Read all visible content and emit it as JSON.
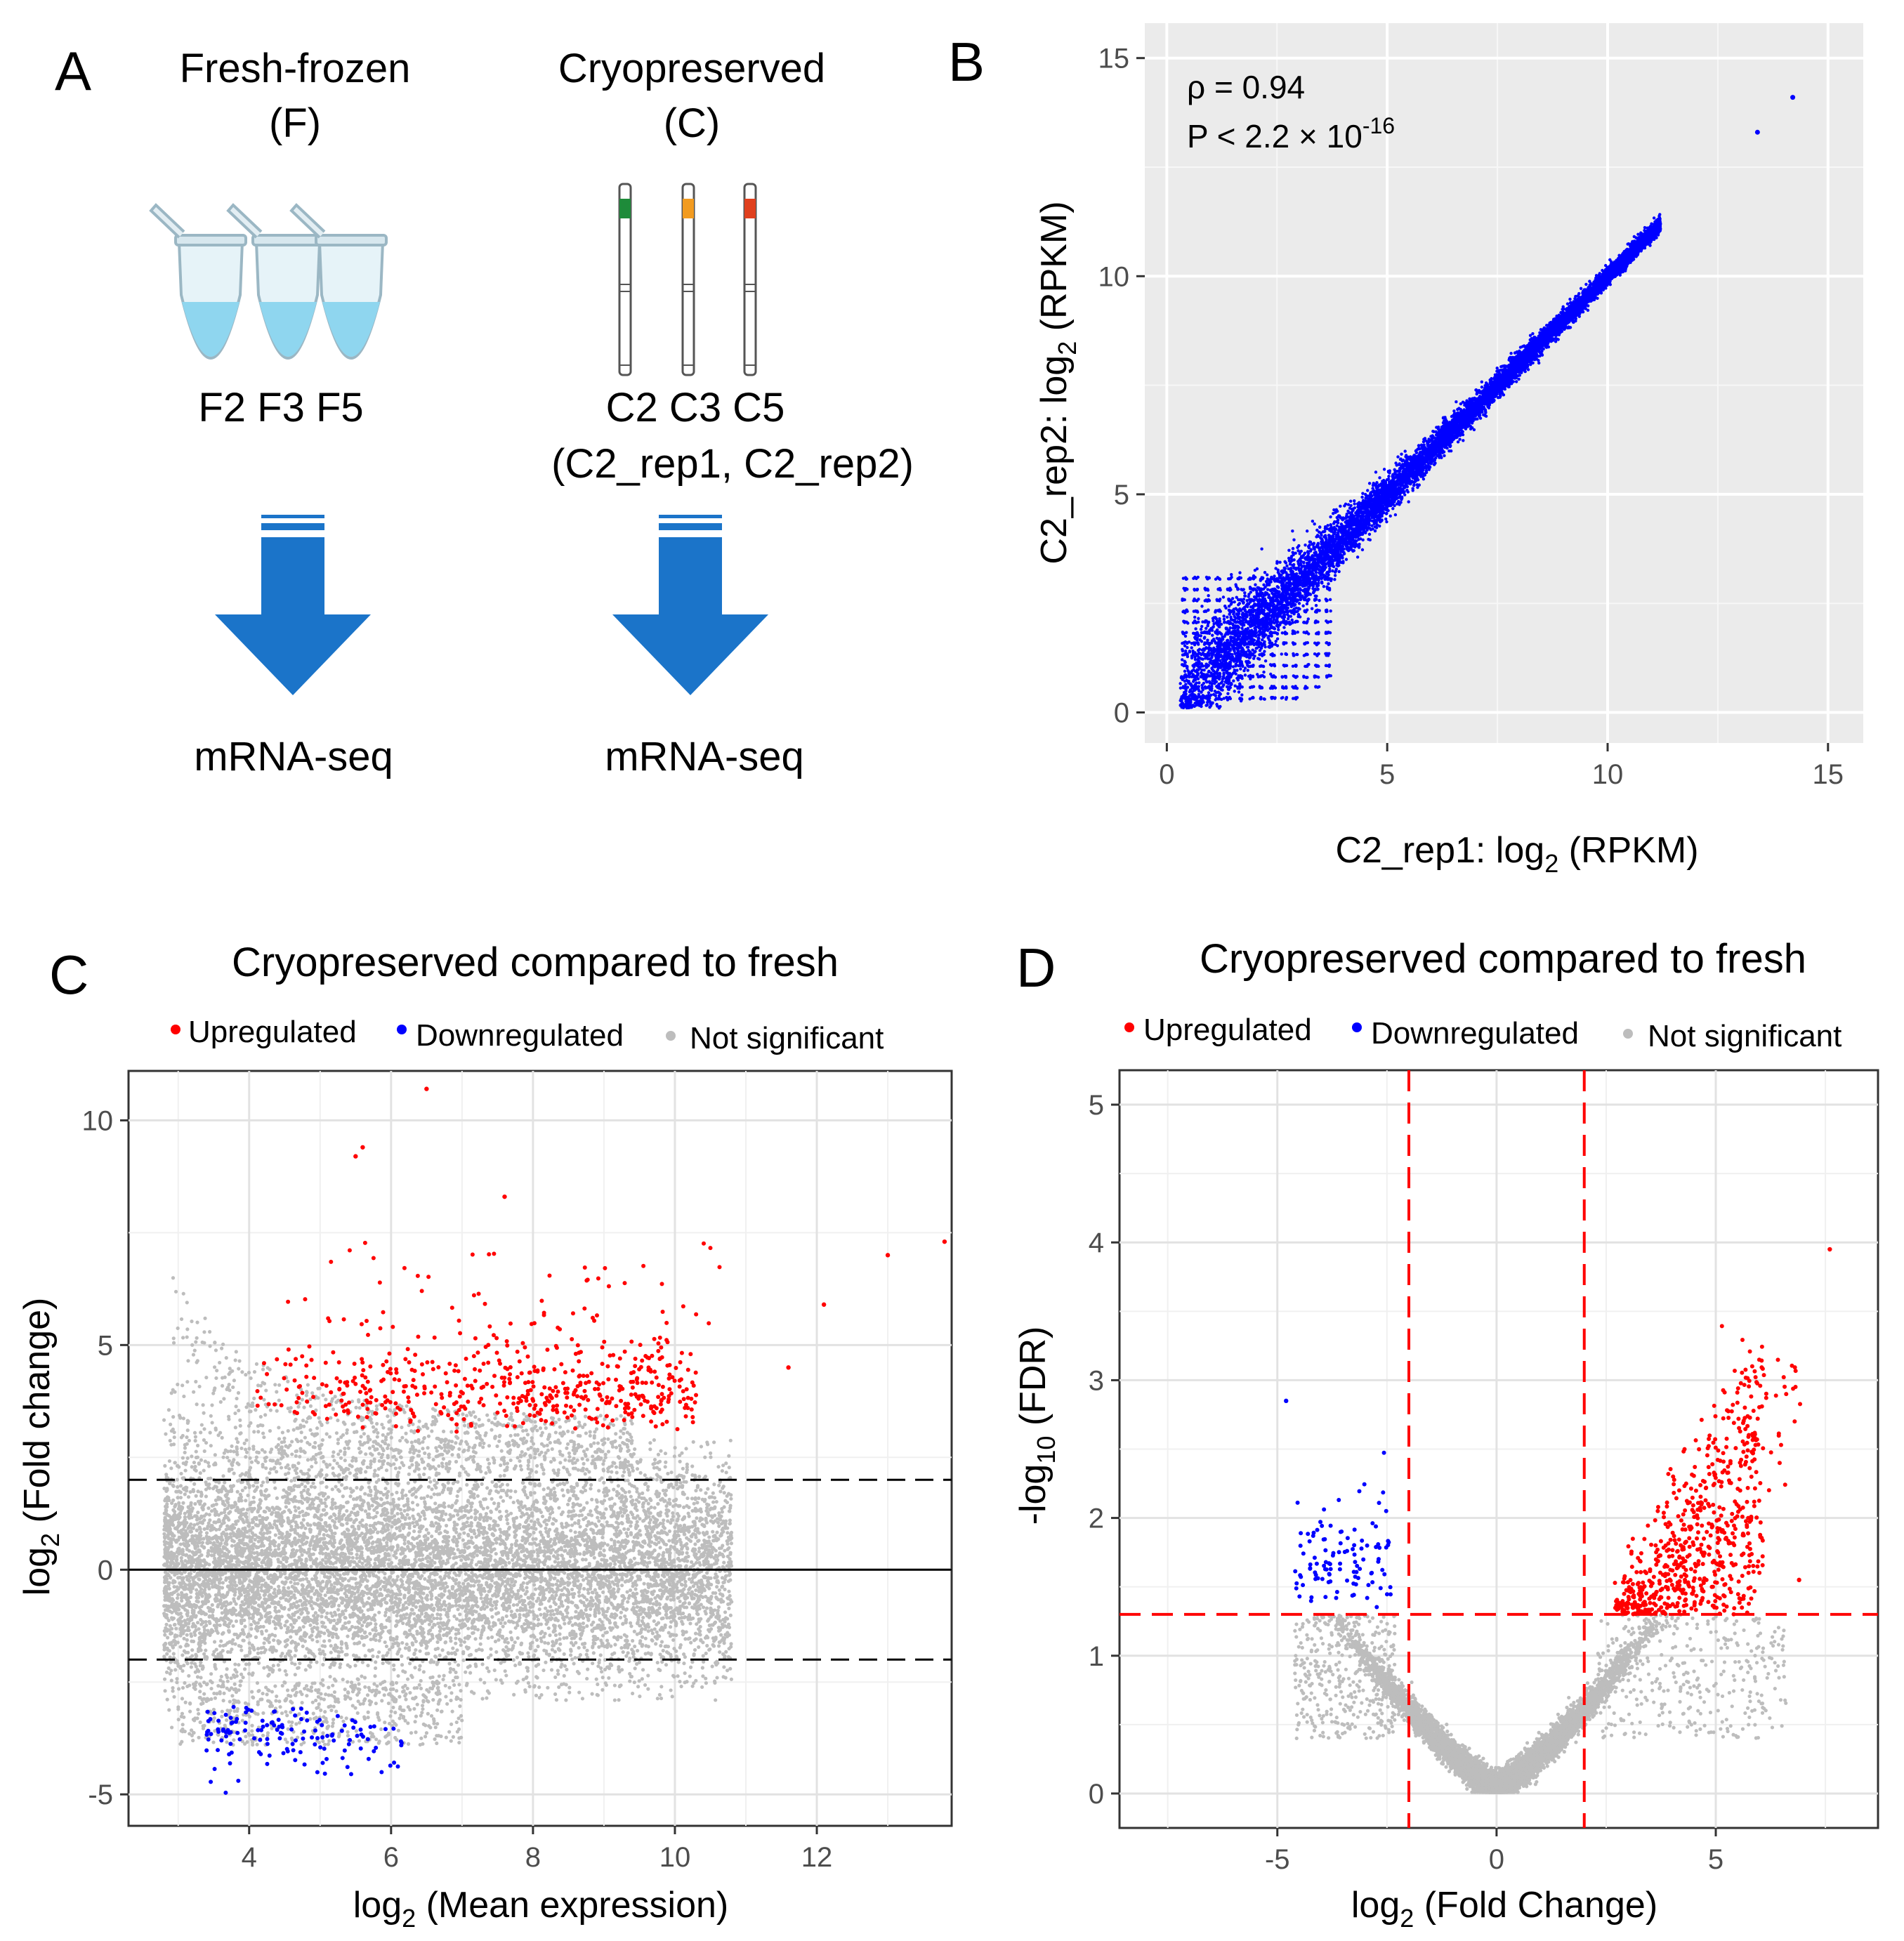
{
  "panel_a": {
    "label": "A",
    "fresh_title": "Fresh-frozen",
    "fresh_sub": "(F)",
    "fresh_samples": "F2 F3 F5",
    "cryo_title": "Cryopreserved",
    "cryo_sub": "(C)",
    "cryo_samples": "C2 C3 C5",
    "cryo_reps": "(C2_rep1, C2_rep2)",
    "assay_fresh": "mRNA-seq",
    "assay_cryo": "mRNA-seq",
    "tube_colors": [
      "#1e8b3a",
      "#f29b20",
      "#e0401e"
    ]
  },
  "colors": {
    "up": "#ff0000",
    "down": "#0000ff",
    "ns": "#bdbdbd",
    "scatter": "#0000ff",
    "panel_bg": "#ebebeb",
    "arrow": "#1b74c9"
  },
  "chart_data": [
    {
      "panel": "B",
      "type": "scatter",
      "title": "",
      "xlabel": "C2_rep1: log2 (RPKM)",
      "ylabel": "C2_rep2: log2 (RPKM)",
      "xlim": [
        -0.5,
        15.8
      ],
      "ylim": [
        -0.7,
        15.8
      ],
      "xticks": [
        "0",
        "5",
        "10",
        "15"
      ],
      "yticks": [
        "0",
        "5",
        "10",
        "15"
      ],
      "annotation_rho": "ρ = 0.94",
      "annotation_p": "P < 2.2 × 10",
      "annotation_p_exp": "-16",
      "outliers": [
        [
          14.2,
          14.1
        ],
        [
          13.4,
          13.3
        ]
      ],
      "trend": {
        "slope": 1,
        "intercept": 0,
        "x_range": [
          0.3,
          11.2
        ]
      }
    },
    {
      "panel": "C",
      "type": "scatter",
      "title": "Cryopreserved compared to fresh",
      "xlabel": "log2 (Mean expression)",
      "ylabel": "log2 (Fold change)",
      "xlim": [
        2.3,
        13.9
      ],
      "ylim": [
        -5.7,
        11.1
      ],
      "xticks": [
        "4",
        "6",
        "8",
        "10",
        "12"
      ],
      "yticks": [
        "-5",
        "0",
        "5",
        "10"
      ],
      "legend": [
        "Upregulated",
        "Downregulated",
        "Not significant"
      ],
      "hlines": [
        {
          "y": 2,
          "style": "dashed"
        },
        {
          "y": -2,
          "style": "dashed"
        },
        {
          "y": 0,
          "style": "solid"
        }
      ],
      "highlight_points": [
        [
          6.5,
          10.7
        ],
        [
          5.6,
          9.4
        ],
        [
          5.5,
          9.2
        ],
        [
          7.6,
          8.3
        ],
        [
          13.8,
          7.3
        ],
        [
          13.0,
          7.0
        ],
        [
          12.1,
          5.9
        ],
        [
          11.6,
          4.5
        ]
      ]
    },
    {
      "panel": "D",
      "type": "scatter",
      "title": "Cryopreserved compared to fresh",
      "xlabel": "log2 (Fold Change)",
      "ylabel": "-log10 (FDR)",
      "xlim": [
        -8.6,
        8.7
      ],
      "ylim": [
        -0.25,
        5.25
      ],
      "xticks": [
        "-5",
        "0",
        "5"
      ],
      "yticks": [
        "0",
        "1",
        "2",
        "3",
        "4",
        "5"
      ],
      "legend": [
        "Upregulated",
        "Downregulated",
        "Not significant"
      ],
      "vlines": [
        -2,
        2
      ],
      "hline": 1.3,
      "highlight_points": [
        [
          7.6,
          3.95
        ],
        [
          -4.8,
          2.85
        ],
        [
          6.9,
          1.55
        ]
      ]
    }
  ]
}
